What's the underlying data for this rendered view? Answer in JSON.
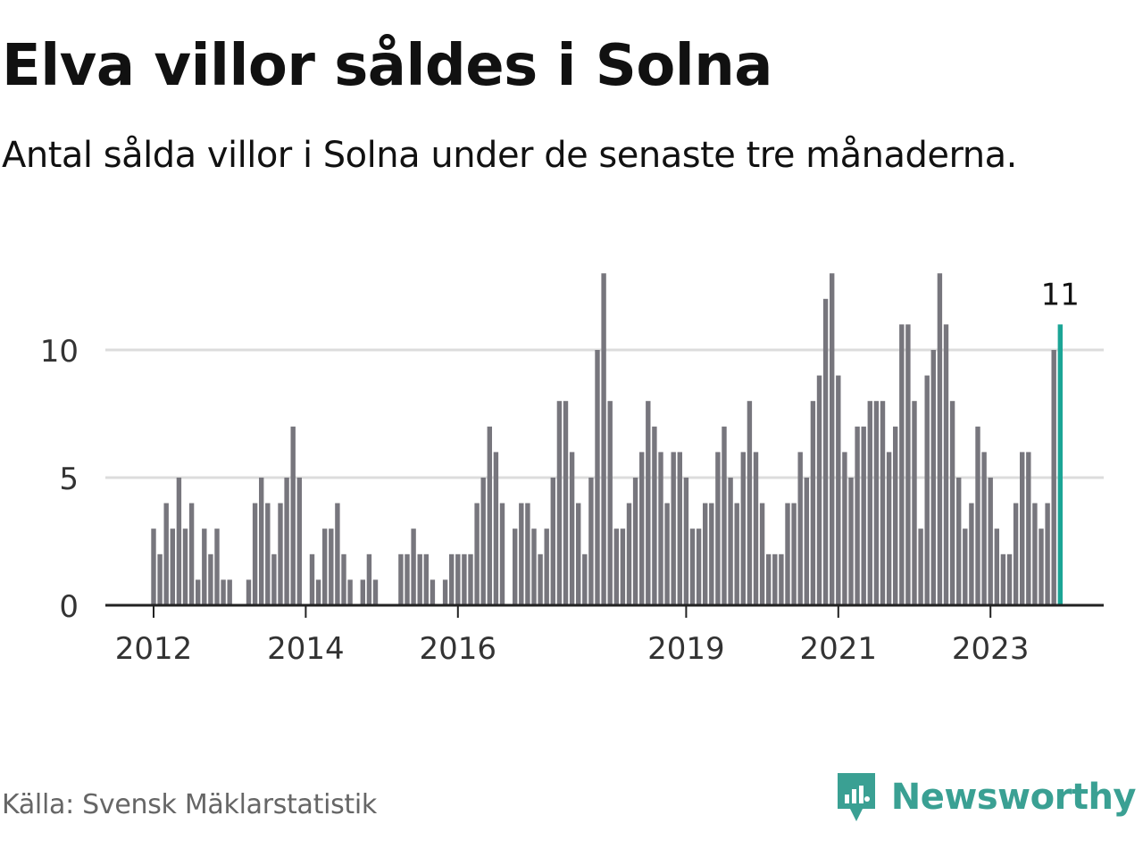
{
  "title": "Elva villor såldes i Solna",
  "subtitle": "Antal sålda villor i Solna under de senaste tre månaderna.",
  "source": "Källa: Svensk Mäklarstatistik",
  "brand": {
    "name": "Newsworthy",
    "icon": "newsworthy-logo-icon"
  },
  "colors": {
    "bar": "#77767d",
    "highlight": "#1ba596",
    "grid": "#dcdcdc",
    "axis": "#222222",
    "brand": "#3aa093"
  },
  "chart_data": {
    "type": "bar",
    "title": "Elva villor såldes i Solna",
    "ylabel": "",
    "xlabel": "",
    "ylim": [
      0,
      13
    ],
    "yticks": [
      0,
      5,
      10
    ],
    "ytick_labels": [
      "0",
      "5",
      "10"
    ],
    "start": "2012-01",
    "xticks": [
      {
        "index": 0,
        "label": "2012"
      },
      {
        "index": 24,
        "label": "2014"
      },
      {
        "index": 48,
        "label": "2016"
      },
      {
        "index": 84,
        "label": "2019"
      },
      {
        "index": 108,
        "label": "2021"
      },
      {
        "index": 132,
        "label": "2023"
      }
    ],
    "highlight_index": 143,
    "highlight_label": "11",
    "values": [
      3,
      2,
      4,
      3,
      5,
      3,
      4,
      1,
      3,
      2,
      3,
      1,
      1,
      0,
      0,
      1,
      4,
      5,
      4,
      2,
      4,
      5,
      7,
      5,
      0,
      2,
      1,
      3,
      3,
      4,
      2,
      1,
      0,
      1,
      2,
      1,
      0,
      0,
      0,
      2,
      2,
      3,
      2,
      2,
      1,
      0,
      1,
      2,
      2,
      2,
      2,
      4,
      5,
      7,
      6,
      4,
      0,
      3,
      4,
      4,
      3,
      2,
      3,
      5,
      8,
      8,
      6,
      4,
      2,
      5,
      10,
      13,
      8,
      3,
      3,
      4,
      5,
      6,
      8,
      7,
      6,
      4,
      6,
      6,
      5,
      3,
      3,
      4,
      4,
      6,
      7,
      5,
      4,
      6,
      8,
      6,
      4,
      2,
      2,
      2,
      4,
      4,
      6,
      5,
      8,
      9,
      12,
      13,
      9,
      6,
      5,
      7,
      7,
      8,
      8,
      8,
      6,
      7,
      11,
      11,
      8,
      3,
      9,
      10,
      13,
      11,
      8,
      5,
      3,
      4,
      7,
      6,
      5,
      3,
      2,
      2,
      4,
      6,
      6,
      4,
      3,
      4,
      10,
      11
    ]
  }
}
